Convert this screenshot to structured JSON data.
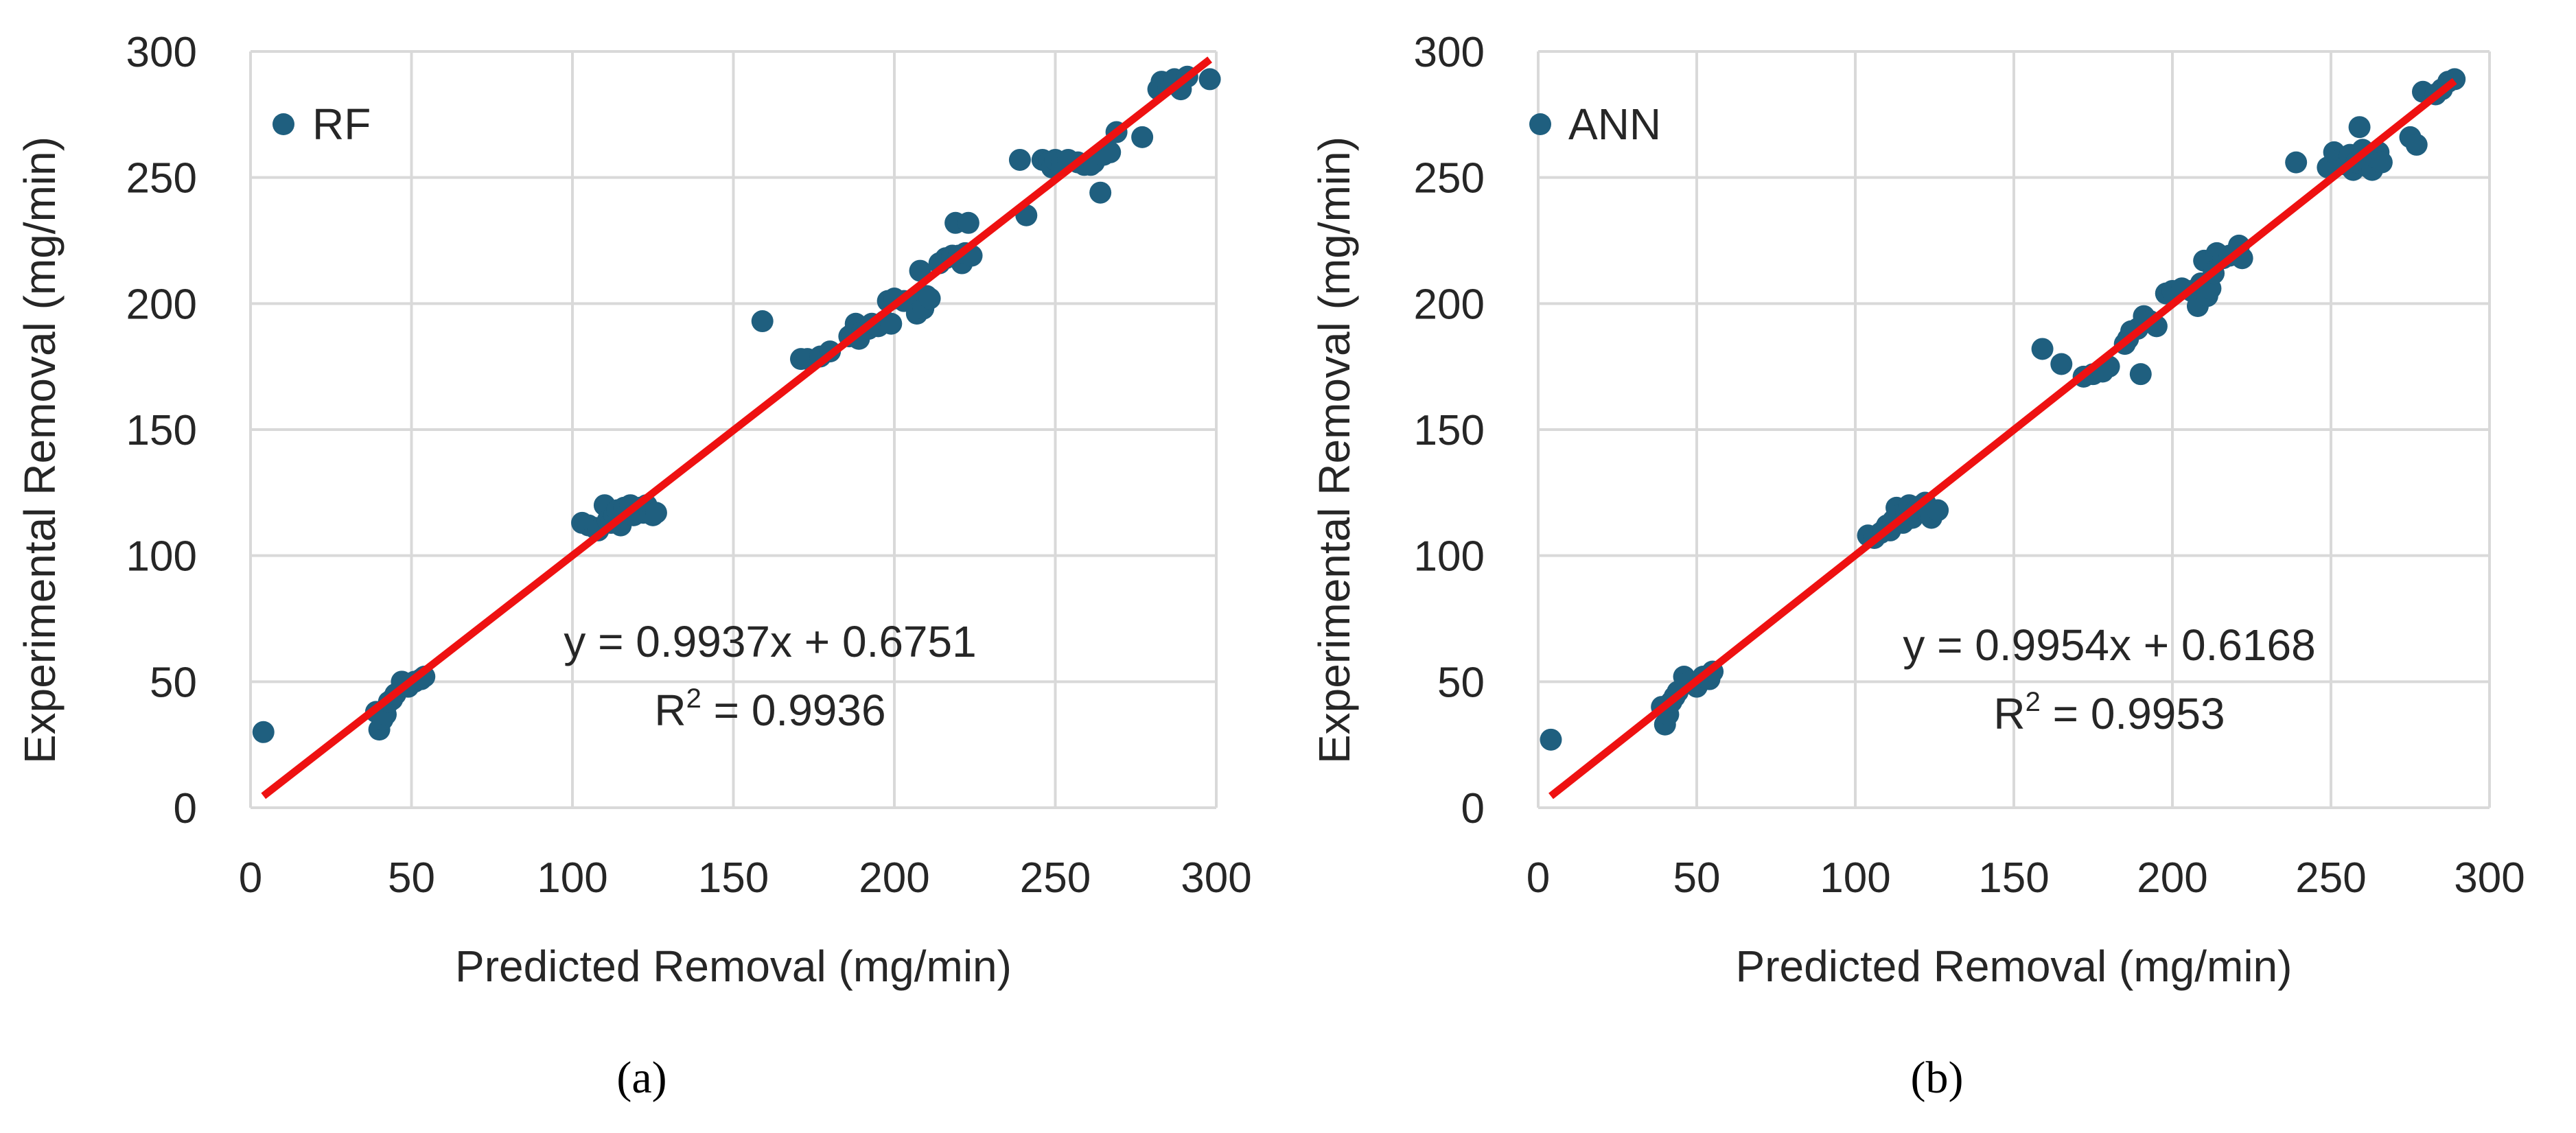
{
  "marker_color": "#1f5f7f",
  "fit_line_color": "#ee1111",
  "grid_color": "#d9d9d9",
  "chart_data": [
    {
      "type": "scatter",
      "panel_label": "(a)",
      "series_name": "RF",
      "legend_position": "top-left",
      "grid": true,
      "xlabel": "Predicted Removal (mg/min)",
      "ylabel": "Experimental Removal (mg/min)",
      "xlim": [
        0,
        300
      ],
      "ylim": [
        0,
        300
      ],
      "xticks": [
        0,
        50,
        100,
        150,
        200,
        250,
        300
      ],
      "yticks": [
        0,
        50,
        100,
        150,
        200,
        250,
        300
      ],
      "equation": "y = 0.9937x + 0.6751",
      "r_squared_label": "R",
      "r_squared_exponent": "2",
      "r_squared_value": " = 0.9936",
      "trendline": {
        "slope": 0.9937,
        "intercept": 0.6751,
        "x_start": 4,
        "x_end": 298
      },
      "points": [
        [
          4,
          30
        ],
        [
          39,
          38
        ],
        [
          40,
          31
        ],
        [
          41,
          35
        ],
        [
          42,
          37
        ],
        [
          43,
          42
        ],
        [
          44,
          43
        ],
        [
          45,
          45
        ],
        [
          47,
          50
        ],
        [
          49,
          48
        ],
        [
          51,
          50
        ],
        [
          53,
          51
        ],
        [
          54,
          52
        ],
        [
          103,
          113
        ],
        [
          105,
          112
        ],
        [
          107,
          111
        ],
        [
          108,
          110
        ],
        [
          110,
          120
        ],
        [
          111,
          114
        ],
        [
          112,
          113
        ],
        [
          113,
          116
        ],
        [
          114,
          118
        ],
        [
          115,
          112
        ],
        [
          116,
          119
        ],
        [
          117,
          117
        ],
        [
          118,
          120
        ],
        [
          119,
          116
        ],
        [
          120,
          118
        ],
        [
          121,
          119
        ],
        [
          122,
          117
        ],
        [
          123,
          120
        ],
        [
          124,
          118
        ],
        [
          125,
          116
        ],
        [
          126,
          117
        ],
        [
          159,
          193
        ],
        [
          171,
          178
        ],
        [
          173,
          178
        ],
        [
          177,
          179
        ],
        [
          180,
          181
        ],
        [
          186,
          187
        ],
        [
          187,
          188
        ],
        [
          188,
          192
        ],
        [
          189,
          186
        ],
        [
          190,
          189
        ],
        [
          192,
          190
        ],
        [
          193,
          192
        ],
        [
          195,
          191
        ],
        [
          197,
          193
        ],
        [
          199,
          192
        ],
        [
          198,
          201
        ],
        [
          200,
          202
        ],
        [
          203,
          201
        ],
        [
          206,
          200
        ],
        [
          207,
          196
        ],
        [
          208,
          213
        ],
        [
          209,
          198
        ],
        [
          210,
          203
        ],
        [
          211,
          202
        ],
        [
          214,
          216
        ],
        [
          216,
          218
        ],
        [
          218,
          219
        ],
        [
          219,
          232
        ],
        [
          220,
          219
        ],
        [
          221,
          216
        ],
        [
          222,
          220
        ],
        [
          223,
          232
        ],
        [
          224,
          219
        ],
        [
          239,
          257
        ],
        [
          241,
          235
        ],
        [
          246,
          257
        ],
        [
          248,
          256
        ],
        [
          249,
          254
        ],
        [
          250,
          257
        ],
        [
          252,
          256
        ],
        [
          254,
          257
        ],
        [
          257,
          256
        ],
        [
          259,
          255
        ],
        [
          261,
          255
        ],
        [
          262,
          256
        ],
        [
          264,
          244
        ],
        [
          265,
          259
        ],
        [
          267,
          260
        ],
        [
          269,
          268
        ],
        [
          277,
          266
        ],
        [
          282,
          285
        ],
        [
          283,
          288
        ],
        [
          285,
          287
        ],
        [
          286,
          288
        ],
        [
          287,
          289
        ],
        [
          289,
          285
        ],
        [
          291,
          290
        ],
        [
          298,
          289
        ]
      ]
    },
    {
      "type": "scatter",
      "panel_label": "(b)",
      "series_name": "ANN",
      "legend_position": "top-left",
      "grid": true,
      "xlabel": "Predicted Removal (mg/min)",
      "ylabel": "Experimental Removal (mg/min)",
      "xlim": [
        0,
        300
      ],
      "ylim": [
        0,
        300
      ],
      "xticks": [
        0,
        50,
        100,
        150,
        200,
        250,
        300
      ],
      "yticks": [
        0,
        50,
        100,
        150,
        200,
        250,
        300
      ],
      "equation": "y = 0.9954x + 0.6168",
      "r_squared_label": "R",
      "r_squared_exponent": "2",
      "r_squared_value": " = 0.9953",
      "trendline": {
        "slope": 0.9954,
        "intercept": 0.6168,
        "x_start": 4,
        "x_end": 289
      },
      "points": [
        [
          4,
          27
        ],
        [
          39,
          40
        ],
        [
          40,
          33
        ],
        [
          41,
          37
        ],
        [
          42,
          42
        ],
        [
          43,
          44
        ],
        [
          44,
          46
        ],
        [
          46,
          52
        ],
        [
          48,
          50
        ],
        [
          50,
          48
        ],
        [
          52,
          52
        ],
        [
          54,
          51
        ],
        [
          55,
          54
        ],
        [
          104,
          108
        ],
        [
          106,
          107
        ],
        [
          108,
          109
        ],
        [
          109,
          110
        ],
        [
          110,
          112
        ],
        [
          111,
          110
        ],
        [
          112,
          114
        ],
        [
          113,
          119
        ],
        [
          114,
          116
        ],
        [
          115,
          113
        ],
        [
          116,
          117
        ],
        [
          117,
          120
        ],
        [
          118,
          115
        ],
        [
          119,
          118
        ],
        [
          120,
          119
        ],
        [
          121,
          120
        ],
        [
          122,
          121
        ],
        [
          123,
          117
        ],
        [
          124,
          115
        ],
        [
          126,
          118
        ],
        [
          159,
          182
        ],
        [
          165,
          176
        ],
        [
          172,
          171
        ],
        [
          175,
          172
        ],
        [
          178,
          173
        ],
        [
          180,
          175
        ],
        [
          185,
          184
        ],
        [
          186,
          186
        ],
        [
          187,
          189
        ],
        [
          189,
          190
        ],
        [
          190,
          172
        ],
        [
          191,
          195
        ],
        [
          193,
          193
        ],
        [
          195,
          191
        ],
        [
          198,
          204
        ],
        [
          200,
          205
        ],
        [
          203,
          206
        ],
        [
          206,
          205
        ],
        [
          208,
          199
        ],
        [
          209,
          208
        ],
        [
          210,
          217
        ],
        [
          211,
          203
        ],
        [
          212,
          206
        ],
        [
          213,
          212
        ],
        [
          214,
          220
        ],
        [
          216,
          218
        ],
        [
          218,
          219
        ],
        [
          220,
          220
        ],
        [
          221,
          223
        ],
        [
          222,
          218
        ],
        [
          239,
          256
        ],
        [
          249,
          254
        ],
        [
          251,
          260
        ],
        [
          253,
          257
        ],
        [
          255,
          255
        ],
        [
          256,
          259
        ],
        [
          257,
          253
        ],
        [
          258,
          256
        ],
        [
          259,
          270
        ],
        [
          260,
          261
        ],
        [
          261,
          255
        ],
        [
          262,
          254
        ],
        [
          263,
          253
        ],
        [
          264,
          258
        ],
        [
          265,
          260
        ],
        [
          266,
          256
        ],
        [
          275,
          266
        ],
        [
          277,
          263
        ],
        [
          279,
          284
        ],
        [
          283,
          283
        ],
        [
          285,
          285
        ],
        [
          287,
          288
        ],
        [
          289,
          289
        ]
      ]
    }
  ]
}
